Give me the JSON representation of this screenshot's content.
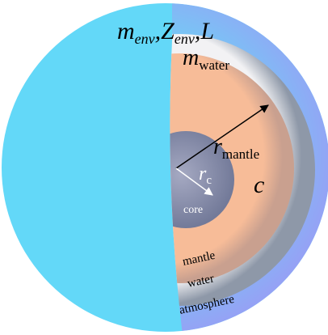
{
  "labels": {
    "envelope": {
      "m": "m",
      "m_sub": "env",
      "Z": ",Z",
      "Z_sub": "env",
      "L": ",L"
    },
    "water_mass": {
      "m": "m",
      "sub": "water"
    },
    "mantle_radius": {
      "r": "r",
      "sub": "mantle"
    },
    "core_radius": {
      "r": "r",
      "sub": "c"
    },
    "c": "c",
    "layers": {
      "core": "core",
      "mantle": "mantle",
      "water": "water",
      "atmosphere": "atmosphere"
    }
  }
}
